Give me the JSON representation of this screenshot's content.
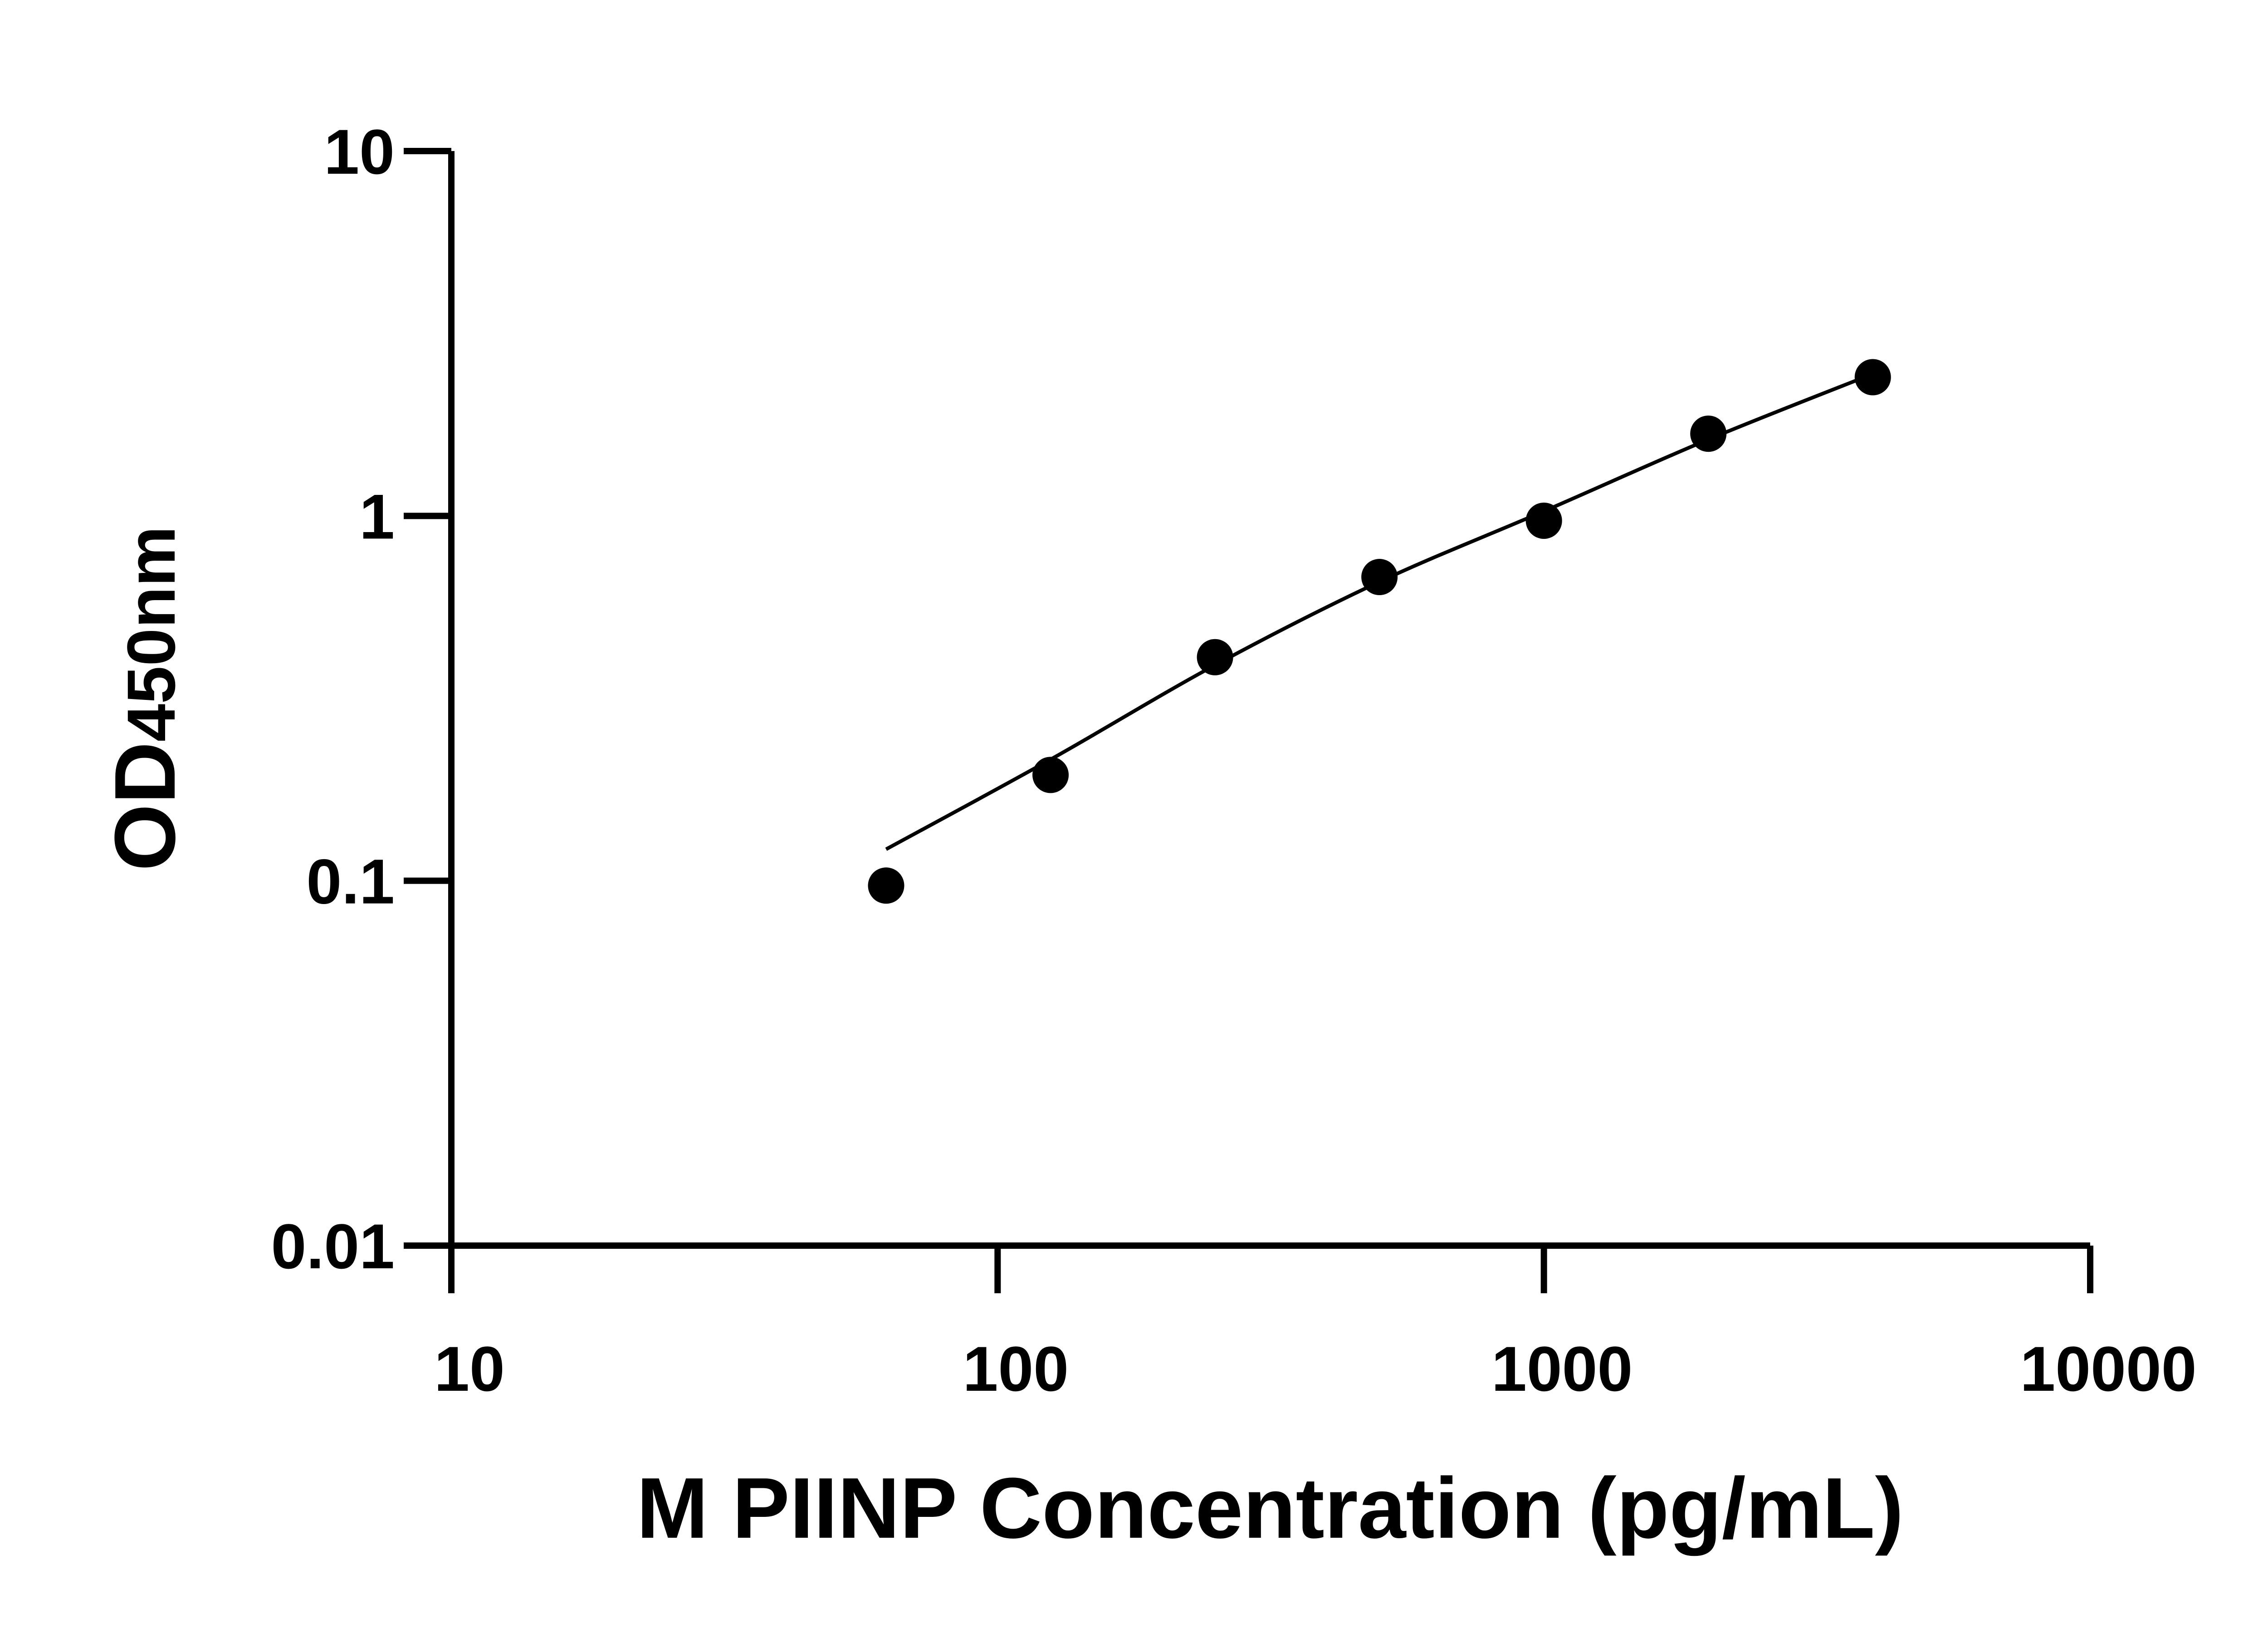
{
  "chart_data": {
    "type": "scatter",
    "title": "",
    "xlabel": "M PIINP Concentration (pg/mL)",
    "ylabel": "OD450nm",
    "ylabel_parts": {
      "main": "OD",
      "sub": "450nm"
    },
    "xscale": "log",
    "yscale": "log",
    "xlim": [
      10,
      10000
    ],
    "ylim": [
      0.01,
      10
    ],
    "xticks": [
      10,
      100,
      1000,
      10000
    ],
    "xtick_labels": [
      "10",
      "100",
      "1000",
      "10000"
    ],
    "yticks": [
      0.01,
      0.1,
      1,
      10
    ],
    "ytick_labels": [
      "0.01",
      "0.1",
      "1",
      "10"
    ],
    "grid": false,
    "legend": "none",
    "series": [
      {
        "x": [
          62.5,
          125,
          250,
          500,
          1000,
          2000,
          4000
        ],
        "y": [
          0.097,
          0.195,
          0.41,
          0.68,
          0.97,
          1.68,
          2.4
        ],
        "marker": "circle",
        "color": "#000000"
      }
    ],
    "fit_curve": {
      "x": [
        62.5,
        125,
        250,
        500,
        1000,
        2000,
        4000
      ],
      "y": [
        0.122,
        0.215,
        0.39,
        0.66,
        1.03,
        1.62,
        2.45
      ],
      "color": "#000000"
    }
  }
}
